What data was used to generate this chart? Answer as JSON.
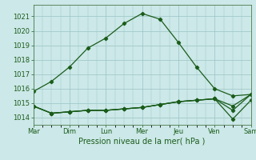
{
  "xlabel": "Pression niveau de la mer( hPa )",
  "x_labels": [
    "Mar",
    "Dim",
    "Lun",
    "Mer",
    "Jeu",
    "Ven",
    "Sam"
  ],
  "x_ticks": [
    0,
    4,
    8,
    12,
    16,
    20,
    24
  ],
  "ylim": [
    1013.5,
    1021.8
  ],
  "yticks": [
    1014,
    1015,
    1016,
    1017,
    1018,
    1019,
    1020,
    1021
  ],
  "background_color": "#cce8e8",
  "grid_color": "#99c4c4",
  "line_color": "#1a5c1a",
  "x_positions": [
    0,
    2,
    4,
    6,
    8,
    10,
    12,
    14,
    16,
    18,
    20,
    22,
    24
  ],
  "y_main": [
    1015.8,
    1016.5,
    1017.5,
    1018.8,
    1019.5,
    1020.5,
    1021.2,
    1020.8,
    1019.2,
    1017.5,
    1016.0,
    1015.5,
    1015.6
  ],
  "y_flat1": [
    1014.8,
    1014.3,
    1014.4,
    1014.5,
    1014.5,
    1014.6,
    1014.7,
    1014.9,
    1015.1,
    1015.2,
    1015.3,
    1014.8,
    1015.6
  ],
  "y_flat2": [
    1014.8,
    1014.3,
    1014.4,
    1014.5,
    1014.5,
    1014.6,
    1014.7,
    1014.9,
    1015.1,
    1015.2,
    1015.3,
    1013.9,
    1015.2
  ],
  "y_flat3": [
    1014.8,
    1014.3,
    1014.4,
    1014.5,
    1014.5,
    1014.6,
    1014.7,
    1014.9,
    1015.1,
    1015.2,
    1015.3,
    1014.5,
    1015.6
  ]
}
